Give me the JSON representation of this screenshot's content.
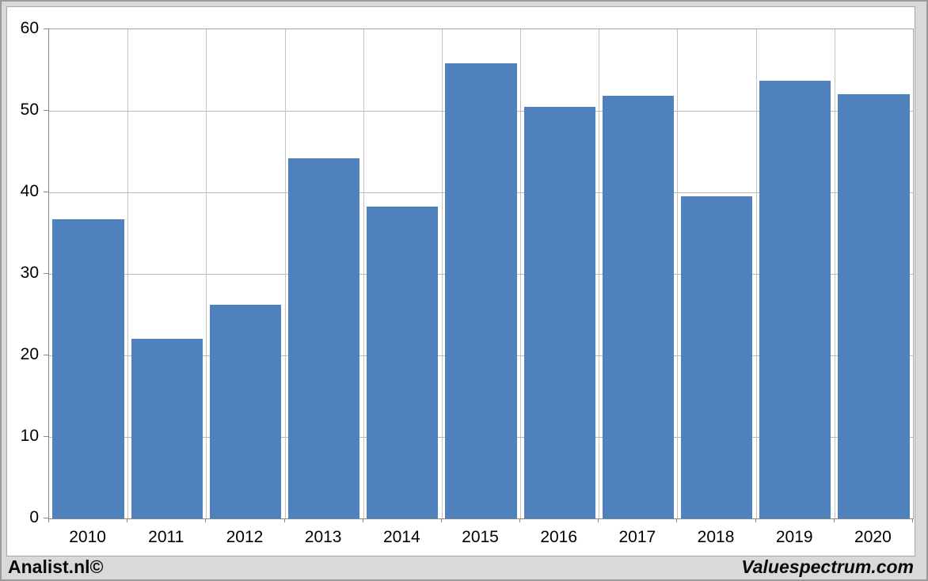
{
  "chart_data": {
    "type": "bar",
    "title": "",
    "xlabel": "",
    "ylabel": "",
    "categories": [
      "2010",
      "2011",
      "2012",
      "2013",
      "2014",
      "2015",
      "2016",
      "2017",
      "2018",
      "2019",
      "2020"
    ],
    "values": [
      36.7,
      22.0,
      26.2,
      44.2,
      38.3,
      55.8,
      50.5,
      51.8,
      39.5,
      53.7,
      52.0
    ],
    "ylim": [
      0,
      60
    ],
    "yticks": [
      0,
      10,
      20,
      30,
      40,
      50,
      60
    ],
    "grid": true,
    "legend": false,
    "bar_color": "#4f81bd",
    "plot_background": "#ffffff",
    "canvas_background": "#d9d9d9",
    "gridline_color": "#b8b8b8",
    "axis_color": "#868686"
  },
  "footer": {
    "left": "Analist.nl©",
    "right": "Valuespectrum.com"
  }
}
